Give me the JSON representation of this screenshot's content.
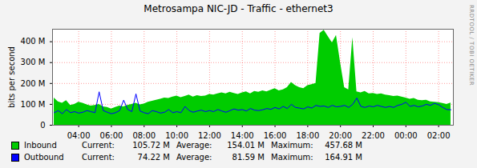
{
  "chart_data": {
    "type": "area",
    "title": "Metrosampa NIC-JD - Traffic - ethernet3",
    "y_label": "bits per second",
    "annotation": "RRDTOOL / TOBI OETIKER",
    "stat_labels": [
      "Current:",
      "Average:",
      "Maximum:"
    ],
    "grid": true,
    "xlim": [
      2.4,
      26.9
    ],
    "xticks": [
      {
        "value": 4,
        "label": "04:00"
      },
      {
        "value": 6,
        "label": "06:00"
      },
      {
        "value": 8,
        "label": "08:00"
      },
      {
        "value": 10,
        "label": "10:00"
      },
      {
        "value": 12,
        "label": "12:00"
      },
      {
        "value": 14,
        "label": "14:00"
      },
      {
        "value": 16,
        "label": "16:00"
      },
      {
        "value": 18,
        "label": "18:00"
      },
      {
        "value": 20,
        "label": "20:00"
      },
      {
        "value": 22,
        "label": "22:00"
      },
      {
        "value": 24,
        "label": "00:00"
      },
      {
        "value": 26,
        "label": "02:00"
      }
    ],
    "ylim": [
      0,
      460
    ],
    "yticks": [
      0,
      {
        "value": 100,
        "label": "100 M"
      },
      {
        "value": 200,
        "label": "200 M"
      },
      {
        "value": 300,
        "label": "300 M"
      },
      {
        "value": 400,
        "label": "400 M"
      }
    ],
    "x": [
      2.5,
      2.75,
      3,
      3.25,
      3.5,
      3.75,
      4,
      4.25,
      4.5,
      4.75,
      5,
      5.25,
      5.5,
      5.75,
      6,
      6.25,
      6.5,
      6.75,
      7,
      7.25,
      7.5,
      7.75,
      8,
      8.25,
      8.5,
      8.75,
      9,
      9.25,
      9.5,
      9.75,
      10,
      10.25,
      10.5,
      10.75,
      11,
      11.25,
      11.5,
      11.75,
      12,
      12.25,
      12.5,
      12.75,
      13,
      13.25,
      13.5,
      13.75,
      14,
      14.25,
      14.5,
      14.75,
      15,
      15.25,
      15.5,
      15.75,
      16,
      16.25,
      16.5,
      16.75,
      17,
      17.25,
      17.5,
      17.75,
      18,
      18.25,
      18.5,
      18.75,
      19,
      19.25,
      19.5,
      19.75,
      20,
      20.25,
      20.5,
      20.75,
      21,
      21.25,
      21.5,
      21.75,
      22,
      22.25,
      22.5,
      22.75,
      23,
      23.25,
      23.5,
      23.75,
      24,
      24.25,
      24.5,
      24.75,
      25,
      25.25,
      25.5,
      25.75,
      26,
      26.25,
      26.5,
      26.75
    ],
    "series": [
      {
        "name": "Inbound",
        "type": "area",
        "color": "#00cc00",
        "stats": [
          "105.72 M",
          "154.01 M",
          "457.68 M"
        ],
        "values": [
          130,
          112,
          105,
          118,
          95,
          100,
          110,
          105,
          98,
          92,
          95,
          100,
          88,
          85,
          78,
          85,
          92,
          88,
          95,
          100,
          105,
          98,
          102,
          110,
          115,
          120,
          125,
          130,
          128,
          135,
          140,
          132,
          138,
          145,
          135,
          142,
          138,
          140,
          148,
          145,
          150,
          155,
          150,
          158,
          152,
          148,
          155,
          160,
          150,
          162,
          158,
          165,
          160,
          168,
          175,
          165,
          170,
          180,
          205,
          190,
          180,
          175,
          190,
          195,
          200,
          440,
          455,
          425,
          395,
          430,
          300,
          180,
          170,
          420,
          160,
          155,
          162,
          150,
          152,
          148,
          150,
          145,
          142,
          138,
          140,
          135,
          130,
          125,
          128,
          120,
          118,
          120,
          112,
          110,
          108,
          104,
          100,
          106
        ]
      },
      {
        "name": "Outbound",
        "type": "line",
        "color": "#0000ff",
        "stats": [
          "74.22 M",
          "81.59 M",
          "164.91 M"
        ],
        "values": [
          60,
          70,
          55,
          75,
          60,
          65,
          58,
          62,
          70,
          65,
          60,
          160,
          70,
          62,
          55,
          60,
          70,
          120,
          75,
          65,
          150,
          68,
          60,
          55,
          70,
          65,
          58,
          62,
          75,
          60,
          65,
          60,
          90,
          70,
          62,
          68,
          72,
          65,
          70,
          65,
          75,
          68,
          62,
          70,
          78,
          72,
          75,
          68,
          80,
          72,
          70,
          74,
          80,
          76,
          85,
          78,
          90,
          80,
          100,
          85,
          82,
          78,
          88,
          82,
          95,
          90,
          92,
          85,
          95,
          88,
          90,
          95,
          85,
          100,
          130,
          90,
          85,
          92,
          88,
          95,
          90,
          85,
          90,
          85,
          95,
          100,
          110,
          90,
          95,
          88,
          92,
          100,
          95,
          105,
          98,
          85,
          75,
          74
        ]
      }
    ]
  }
}
